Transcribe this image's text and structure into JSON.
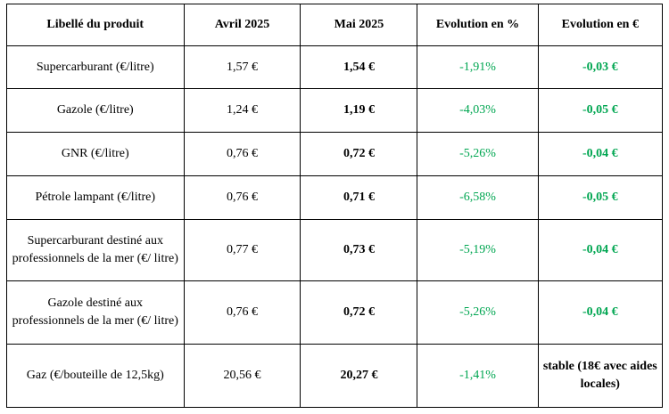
{
  "table": {
    "headers": {
      "label": "Libellé du produit",
      "april": "Avril 2025",
      "may": "Mai 2025",
      "evolution_pct": "Evolution en %",
      "evolution_eur": "Evolution en €"
    },
    "rows": [
      {
        "label": "Supercarburant (€/litre)",
        "april": "1,57 €",
        "may": "1,54 €",
        "evolution_pct": "-1,91%",
        "evolution_eur": "-0,03 €"
      },
      {
        "label": "Gazole (€/litre)",
        "april": "1,24 €",
        "may": "1,19 €",
        "evolution_pct": "-4,03%",
        "evolution_eur": "-0,05 €"
      },
      {
        "label": "GNR (€/litre)",
        "april": "0,76 €",
        "may": "0,72 €",
        "evolution_pct": "-5,26%",
        "evolution_eur": "-0,04 €"
      },
      {
        "label": "Pétrole lampant (€/litre)",
        "april": "0,76 €",
        "may": "0,71 €",
        "evolution_pct": "-6,58%",
        "evolution_eur": "-0,05 €"
      },
      {
        "label": "Supercarburant destiné aux professionnels de la mer (€/ litre)",
        "april": "0,77 €",
        "may": "0,73 €",
        "evolution_pct": "-5,19%",
        "evolution_eur": "-0,04 €"
      },
      {
        "label": "Gazole destiné aux professionnels de la mer (€/ litre)",
        "april": "0,76 €",
        "may": "0,72 €",
        "evolution_pct": "-5,26%",
        "evolution_eur": "-0,04 €"
      },
      {
        "label": "Gaz (€/bouteille de 12,5kg)",
        "april": "20,56 €",
        "may": "20,27 €",
        "evolution_pct": "-1,41%",
        "evolution_eur": "stable (18€ avec aides locales)"
      }
    ]
  },
  "colors": {
    "negative_evolution": "#00a651",
    "border": "#000000",
    "text": "#000000"
  }
}
